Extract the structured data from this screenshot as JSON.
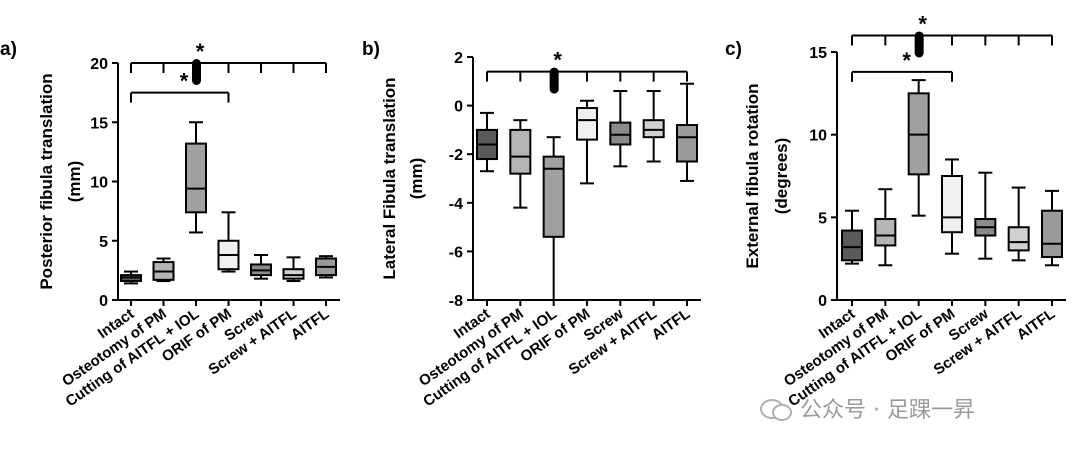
{
  "chart_data": [
    {
      "type": "boxplot",
      "panel_label": "a)",
      "ylabel": "Posterior fibula translation",
      "yunit": "(mm)",
      "ylim": [
        0,
        20
      ],
      "yticks": [
        0,
        5,
        10,
        15,
        20
      ],
      "categories": [
        "Intact",
        "Osteotomy of PM",
        "Cutting of AITFL + IOL",
        "ORIF of PM",
        "Screw",
        "Screw + AITFL",
        "AITFL"
      ],
      "boxes": [
        {
          "min": 1.4,
          "q1": 1.6,
          "median": 1.9,
          "q3": 2.1,
          "max": 2.4,
          "fill": "#5a5a5a"
        },
        {
          "min": 1.6,
          "q1": 1.7,
          "median": 2.4,
          "q3": 3.2,
          "max": 3.5,
          "fill": "#b5b5b5"
        },
        {
          "min": 5.7,
          "q1": 7.4,
          "median": 9.4,
          "q3": 13.2,
          "max": 15.0,
          "fill": "#a0a0a0"
        },
        {
          "min": 2.4,
          "q1": 2.6,
          "median": 3.8,
          "q3": 5.0,
          "max": 7.4,
          "fill": "#f0f0f0"
        },
        {
          "min": 1.8,
          "q1": 2.1,
          "median": 2.5,
          "q3": 3.0,
          "max": 3.8,
          "fill": "#8a8a8a"
        },
        {
          "min": 1.6,
          "q1": 1.8,
          "median": 2.1,
          "q3": 2.6,
          "max": 3.6,
          "fill": "#d0d0d0"
        },
        {
          "min": 1.9,
          "q1": 2.1,
          "median": 2.8,
          "q3": 3.5,
          "max": 3.7,
          "fill": "#9a9a9a"
        }
      ],
      "brackets": [
        {
          "from": 0,
          "to": 6,
          "level": 20.0,
          "label": "*"
        },
        {
          "from": 0,
          "to": 3,
          "level": 17.5,
          "label": "*"
        }
      ]
    },
    {
      "type": "boxplot",
      "panel_label": "b)",
      "ylabel": "Lateral Fibula translation",
      "yunit": "(mm)",
      "ylim": [
        -8,
        2
      ],
      "yticks": [
        -8,
        -6,
        -4,
        -2,
        0,
        2
      ],
      "categories": [
        "Intact",
        "Osteotomy of PM",
        "Cutting of AITFL + IOL",
        "ORIF of PM",
        "Screw",
        "Screw + AITFL",
        "AITFL"
      ],
      "boxes": [
        {
          "min": -2.7,
          "q1": -2.2,
          "median": -1.6,
          "q3": -1.0,
          "max": -0.3,
          "fill": "#5a5a5a"
        },
        {
          "min": -4.2,
          "q1": -2.8,
          "median": -2.1,
          "q3": -1.0,
          "max": -0.6,
          "fill": "#b5b5b5"
        },
        {
          "min": -8.0,
          "q1": -5.4,
          "median": -2.6,
          "q3": -2.1,
          "max": -1.3,
          "fill": "#a0a0a0"
        },
        {
          "min": -3.2,
          "q1": -1.4,
          "median": -0.6,
          "q3": -0.1,
          "max": 0.2,
          "fill": "#f0f0f0"
        },
        {
          "min": -2.5,
          "q1": -1.6,
          "median": -1.2,
          "q3": -0.7,
          "max": 0.6,
          "fill": "#8a8a8a"
        },
        {
          "min": -2.3,
          "q1": -1.3,
          "median": -1.0,
          "q3": -0.6,
          "max": 0.6,
          "fill": "#d0d0d0"
        },
        {
          "min": -3.1,
          "q1": -2.3,
          "median": -1.3,
          "q3": -0.8,
          "max": 0.9,
          "fill": "#9a9a9a"
        }
      ],
      "brackets": [
        {
          "from": 0,
          "to": 6,
          "level": 1.4,
          "label": "*"
        }
      ]
    },
    {
      "type": "boxplot",
      "panel_label": "c)",
      "ylabel": "External fibula rotation",
      "yunit": "(degrees)",
      "ylim": [
        0,
        15
      ],
      "yticks": [
        0,
        5,
        10,
        15
      ],
      "categories": [
        "Intact",
        "Osteotomy of PM",
        "Cutting of AITFL + IOL",
        "ORIF of PM",
        "Screw",
        "Screw + AITFL",
        "AITFL"
      ],
      "boxes": [
        {
          "min": 2.2,
          "q1": 2.4,
          "median": 3.2,
          "q3": 4.2,
          "max": 5.4,
          "fill": "#5a5a5a"
        },
        {
          "min": 2.1,
          "q1": 3.3,
          "median": 3.9,
          "q3": 4.9,
          "max": 6.7,
          "fill": "#b5b5b5"
        },
        {
          "min": 5.1,
          "q1": 7.6,
          "median": 10.0,
          "q3": 12.5,
          "max": 13.3,
          "fill": "#a0a0a0"
        },
        {
          "min": 2.8,
          "q1": 4.1,
          "median": 5.0,
          "q3": 7.5,
          "max": 8.5,
          "fill": "#f0f0f0"
        },
        {
          "min": 2.5,
          "q1": 3.9,
          "median": 4.4,
          "q3": 4.9,
          "max": 7.7,
          "fill": "#8a8a8a"
        },
        {
          "min": 2.4,
          "q1": 3.0,
          "median": 3.5,
          "q3": 4.4,
          "max": 6.8,
          "fill": "#d0d0d0"
        },
        {
          "min": 2.1,
          "q1": 2.6,
          "median": 3.4,
          "q3": 5.4,
          "max": 6.6,
          "fill": "#9a9a9a"
        }
      ],
      "brackets": [
        {
          "from": 0,
          "to": 6,
          "level": 16.0,
          "label": "*"
        },
        {
          "from": 0,
          "to": 3,
          "level": 13.8,
          "label": "*"
        }
      ]
    }
  ],
  "watermark": {
    "text": "公众号 · 足踝一昇",
    "icon": "wechat-icon"
  },
  "colors": {
    "stroke": "#000000",
    "text": "#000000"
  }
}
